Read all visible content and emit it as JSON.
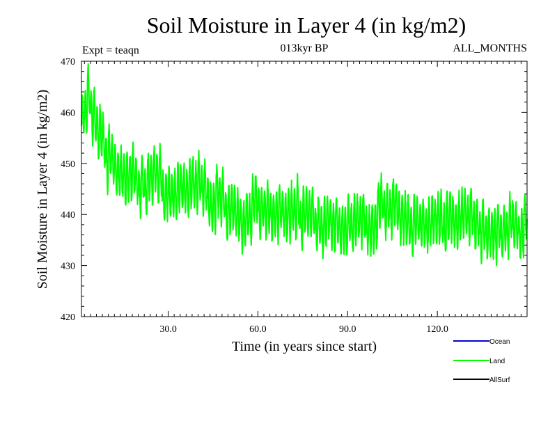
{
  "chart_data": {
    "type": "line",
    "title": "Soil Moisture in Layer 4 (in kg/m2)",
    "subtitle_left": "Expt = teaqn",
    "subtitle_center": "013kyr BP",
    "subtitle_right": "ALL_MONTHS",
    "xlabel": "Time (in years since start)",
    "ylabel": "Soil Moisture in Layer 4 (in kg/m2)",
    "xlim": [
      1,
      150
    ],
    "ylim": [
      420,
      470
    ],
    "x_ticks": [
      30,
      60,
      90,
      120
    ],
    "x_tick_labels": [
      "30.0",
      "60.0",
      "90.0",
      "120.0"
    ],
    "y_ticks": [
      420,
      430,
      440,
      450,
      460,
      470
    ],
    "y_tick_labels": [
      "420",
      "430",
      "440",
      "450",
      "460",
      "470"
    ],
    "samples_per_year": 12,
    "series_trend": {
      "x": [
        1,
        3,
        6,
        10,
        15,
        20,
        25,
        30,
        40,
        50,
        55,
        60,
        70,
        80,
        90,
        100,
        105,
        110,
        115,
        120,
        125,
        130,
        135,
        140,
        145,
        150
      ],
      "y": [
        457,
        463,
        458,
        451,
        448,
        446,
        447,
        445,
        445,
        441,
        438,
        442,
        441,
        439,
        438,
        440,
        442,
        437,
        439,
        440,
        437,
        439,
        438,
        436,
        438,
        438
      ]
    },
    "seasonal_amplitude": 4.5,
    "series": [
      {
        "name": "Ocean",
        "color": "#0000cc",
        "visible": false
      },
      {
        "name": "Land",
        "color": "#00ff00",
        "visible": true
      },
      {
        "name": "AllSurf",
        "color": "#000000",
        "visible": false
      }
    ]
  }
}
